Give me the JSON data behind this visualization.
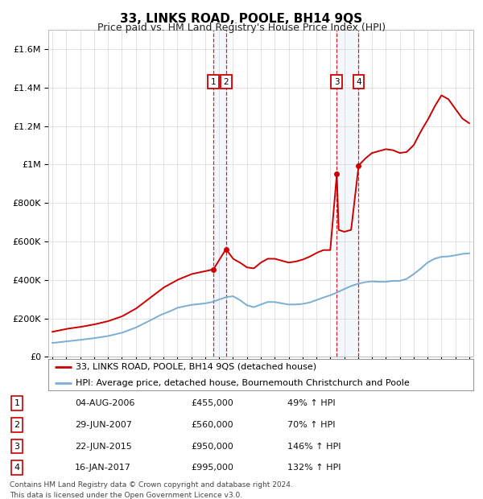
{
  "title": "33, LINKS ROAD, POOLE, BH14 9QS",
  "subtitle": "Price paid vs. HM Land Registry's House Price Index (HPI)",
  "footer1": "Contains HM Land Registry data © Crown copyright and database right 2024.",
  "footer2": "This data is licensed under the Open Government Licence v3.0.",
  "legend_red": "33, LINKS ROAD, POOLE, BH14 9QS (detached house)",
  "legend_blue": "HPI: Average price, detached house, Bournemouth Christchurch and Poole",
  "transactions": [
    {
      "num": 1,
      "date": "04-AUG-2006",
      "date_val": 2006.59,
      "price": 455000,
      "pct": "49%",
      "dir": "↑"
    },
    {
      "num": 2,
      "date": "29-JUN-2007",
      "date_val": 2007.49,
      "price": 560000,
      "pct": "70%",
      "dir": "↑"
    },
    {
      "num": 3,
      "date": "22-JUN-2015",
      "date_val": 2015.47,
      "price": 950000,
      "pct": "146%",
      "dir": "↑"
    },
    {
      "num": 4,
      "date": "16-JAN-2017",
      "date_val": 2017.04,
      "price": 995000,
      "pct": "132%",
      "dir": "↑"
    }
  ],
  "hpi_color": "#7aaed4",
  "sale_color": "#cc0000",
  "ylim": [
    0,
    1700000
  ],
  "yticks": [
    0,
    200000,
    400000,
    600000,
    800000,
    1000000,
    1200000,
    1400000,
    1600000
  ],
  "xlim_start": 1994.7,
  "xlim_end": 2025.3,
  "hpi_anchors": [
    [
      1995.0,
      72000
    ],
    [
      1996.0,
      80000
    ],
    [
      1997.0,
      88000
    ],
    [
      1998.0,
      97000
    ],
    [
      1999.0,
      108000
    ],
    [
      2000.0,
      125000
    ],
    [
      2001.0,
      152000
    ],
    [
      2002.0,
      188000
    ],
    [
      2002.8,
      218000
    ],
    [
      2003.5,
      238000
    ],
    [
      2004.0,
      255000
    ],
    [
      2005.0,
      270000
    ],
    [
      2006.0,
      278000
    ],
    [
      2006.5,
      285000
    ],
    [
      2007.0,
      298000
    ],
    [
      2007.5,
      310000
    ],
    [
      2008.0,
      315000
    ],
    [
      2008.5,
      295000
    ],
    [
      2009.0,
      268000
    ],
    [
      2009.5,
      258000
    ],
    [
      2010.0,
      272000
    ],
    [
      2010.5,
      285000
    ],
    [
      2011.0,
      285000
    ],
    [
      2011.5,
      278000
    ],
    [
      2012.0,
      272000
    ],
    [
      2012.5,
      272000
    ],
    [
      2013.0,
      275000
    ],
    [
      2013.5,
      282000
    ],
    [
      2014.0,
      295000
    ],
    [
      2014.5,
      308000
    ],
    [
      2015.0,
      320000
    ],
    [
      2015.5,
      335000
    ],
    [
      2016.0,
      352000
    ],
    [
      2016.5,
      368000
    ],
    [
      2017.0,
      380000
    ],
    [
      2017.5,
      388000
    ],
    [
      2018.0,
      392000
    ],
    [
      2018.5,
      390000
    ],
    [
      2019.0,
      390000
    ],
    [
      2019.5,
      395000
    ],
    [
      2020.0,
      395000
    ],
    [
      2020.5,
      405000
    ],
    [
      2021.0,
      430000
    ],
    [
      2021.5,
      458000
    ],
    [
      2022.0,
      490000
    ],
    [
      2022.5,
      510000
    ],
    [
      2023.0,
      520000
    ],
    [
      2023.5,
      522000
    ],
    [
      2024.0,
      528000
    ],
    [
      2024.5,
      535000
    ],
    [
      2025.0,
      538000
    ]
  ],
  "red_anchors": [
    [
      1995.0,
      130000
    ],
    [
      1996.0,
      145000
    ],
    [
      1997.0,
      155000
    ],
    [
      1998.0,
      168000
    ],
    [
      1999.0,
      185000
    ],
    [
      2000.0,
      210000
    ],
    [
      2001.0,
      250000
    ],
    [
      2002.0,
      305000
    ],
    [
      2003.0,
      360000
    ],
    [
      2004.0,
      400000
    ],
    [
      2005.0,
      430000
    ],
    [
      2006.0,
      445000
    ],
    [
      2006.59,
      455000
    ],
    [
      2007.49,
      560000
    ],
    [
      2007.8,
      530000
    ],
    [
      2008.0,
      510000
    ],
    [
      2008.5,
      490000
    ],
    [
      2009.0,
      465000
    ],
    [
      2009.5,
      460000
    ],
    [
      2010.0,
      490000
    ],
    [
      2010.5,
      510000
    ],
    [
      2011.0,
      510000
    ],
    [
      2011.5,
      500000
    ],
    [
      2012.0,
      490000
    ],
    [
      2012.5,
      495000
    ],
    [
      2013.0,
      505000
    ],
    [
      2013.5,
      520000
    ],
    [
      2014.0,
      540000
    ],
    [
      2014.5,
      555000
    ],
    [
      2015.0,
      555000
    ],
    [
      2015.47,
      950000
    ],
    [
      2015.6,
      660000
    ],
    [
      2016.0,
      650000
    ],
    [
      2016.5,
      660000
    ],
    [
      2017.04,
      995000
    ],
    [
      2017.5,
      1030000
    ],
    [
      2018.0,
      1060000
    ],
    [
      2018.5,
      1070000
    ],
    [
      2019.0,
      1080000
    ],
    [
      2019.5,
      1075000
    ],
    [
      2020.0,
      1060000
    ],
    [
      2020.5,
      1065000
    ],
    [
      2021.0,
      1100000
    ],
    [
      2021.5,
      1170000
    ],
    [
      2022.0,
      1230000
    ],
    [
      2022.5,
      1300000
    ],
    [
      2023.0,
      1360000
    ],
    [
      2023.5,
      1340000
    ],
    [
      2024.0,
      1290000
    ],
    [
      2024.5,
      1240000
    ],
    [
      2025.0,
      1215000
    ]
  ],
  "row_texts": [
    [
      "1",
      "04-AUG-2006",
      "£455,000",
      "49% ↑ HPI"
    ],
    [
      "2",
      "29-JUN-2007",
      "£560,000",
      "70% ↑ HPI"
    ],
    [
      "3",
      "22-JUN-2015",
      "£950,000",
      "146% ↑ HPI"
    ],
    [
      "4",
      "16-JAN-2017",
      "£995,000",
      "132% ↑ HPI"
    ]
  ]
}
